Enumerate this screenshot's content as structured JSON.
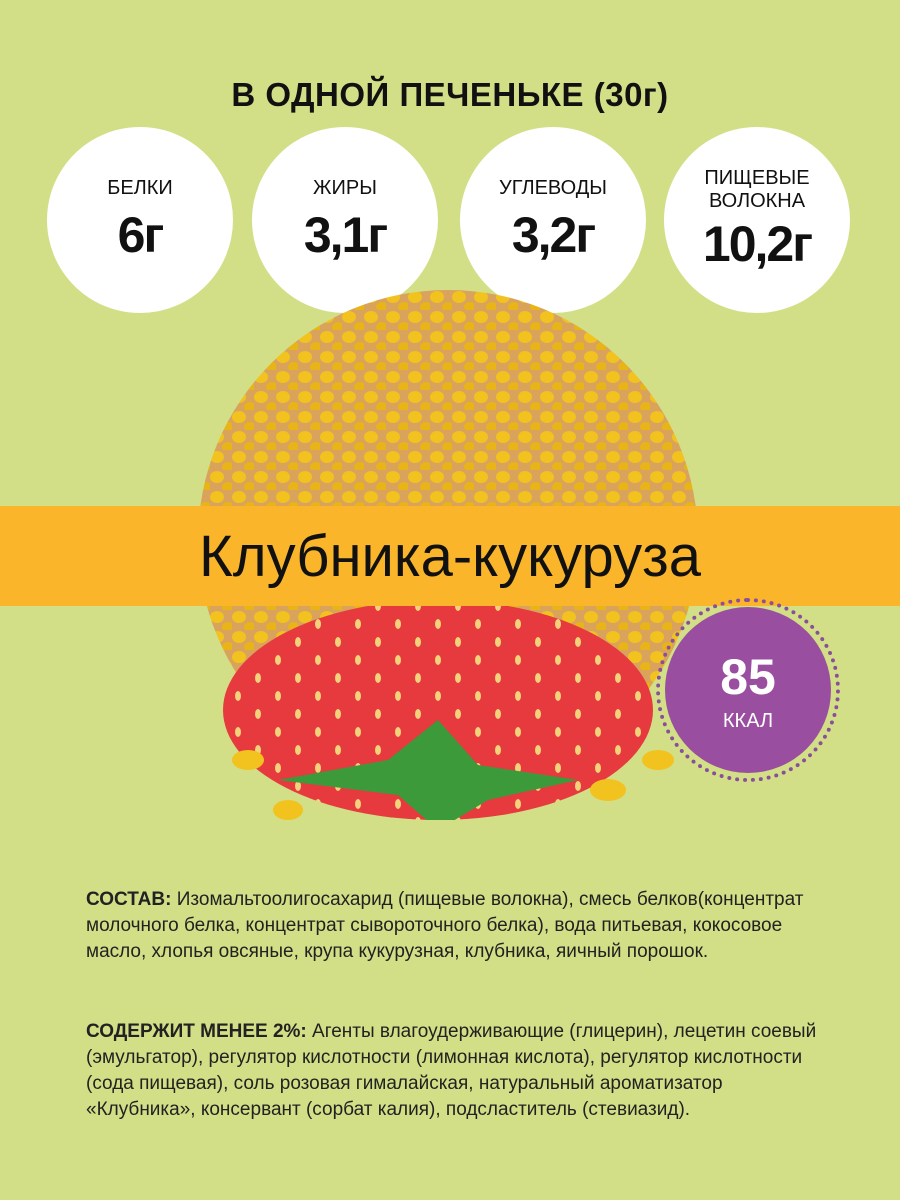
{
  "title": "В ОДНОЙ ПЕЧЕНЬКЕ (30г)",
  "nutrients": [
    {
      "label": "БЕЛКИ",
      "value": "6г"
    },
    {
      "label": "ЖИРЫ",
      "value": "3,1г"
    },
    {
      "label": "УГЛЕВОДЫ",
      "value": "3,2г"
    },
    {
      "label": "ПИЩЕВЫЕ ВОЛОКНА",
      "value": "10,2г"
    }
  ],
  "flavor": "Клубника-кукуруза",
  "calories": {
    "value": "85",
    "unit": "ККАЛ"
  },
  "composition": {
    "label": "СОСТАВ:",
    "text": " Изомальтоолигосахарид (пищевые волокна), смесь белков(концентрат молочного белка, концентрат сывороточного белка), вода питьевая, кокосовое масло, хлопья овсяные, крупа кукурузная, клубника, яичный порошок."
  },
  "minor": {
    "label": "СОДЕРЖИТ МЕНЕЕ 2%:",
    "text": " Агенты влагоудерживающие (глицерин), лецетин соевый (эмульгатор), регулятор кислотности (лимонная кислота), регулятор кислотности (сода пищевая), соль розовая гималайская, натуральный ароматизатор «Клубника», консервант (сорбат калия), подсластитель (стевиазид)."
  },
  "colors": {
    "background": "#d2df86",
    "banner": "#fbb52b",
    "calorie_badge": "#9a4ea0"
  }
}
